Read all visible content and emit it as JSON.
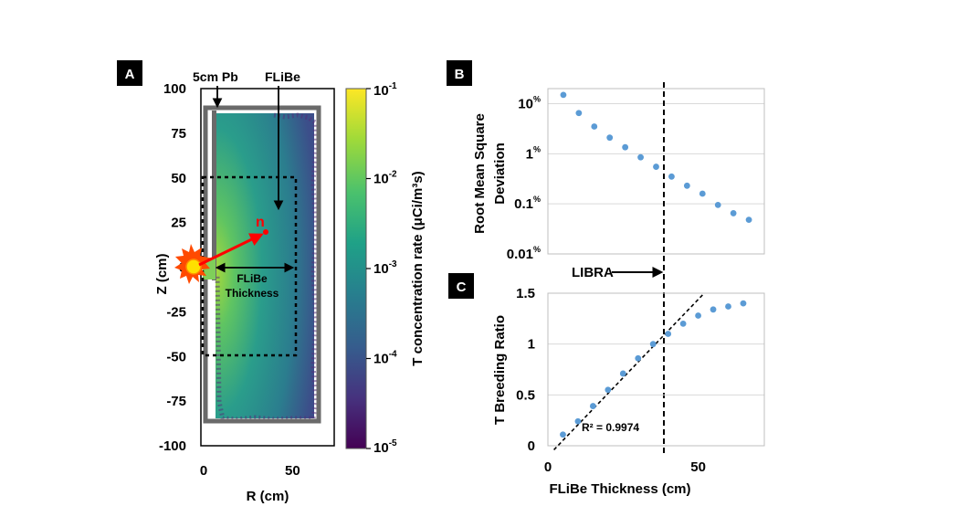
{
  "panels": {
    "a_label": "A",
    "b_label": "B",
    "c_label": "C"
  },
  "colors": {
    "panel_label_bg": "#000000",
    "marker": "#5b9bd5",
    "shield": "#6a6a6a",
    "arrow_red": "#ff0000",
    "source_yellow": "#ffe000"
  },
  "chart_data": [
    {
      "id": "A",
      "type": "heatmap",
      "title": "",
      "xlabel": "R (cm)",
      "ylabel": "Z (cm)",
      "xlim": [
        0,
        75
      ],
      "ylim": [
        -100,
        100
      ],
      "x_ticks": [
        {
          "v": 0,
          "label": "0"
        },
        {
          "v": 50,
          "label": "50"
        }
      ],
      "y_ticks": [
        {
          "v": 100,
          "label": "100"
        },
        {
          "v": 75,
          "label": "75"
        },
        {
          "v": 50,
          "label": "50"
        },
        {
          "v": 25,
          "label": "25"
        },
        {
          "v": 0,
          "label": "0"
        },
        {
          "v": -25,
          "label": "-25"
        },
        {
          "v": -50,
          "label": "-50"
        },
        {
          "v": -75,
          "label": "-75"
        },
        {
          "v": -100,
          "label": "-100"
        }
      ],
      "colorbar": {
        "label": "T concentration rate (μCi/m³s)",
        "scale": "log",
        "range": [
          1e-05,
          0.1
        ],
        "ticks": [
          {
            "v": -1,
            "label": "10",
            "exp": "-1"
          },
          {
            "v": -2,
            "label": "10",
            "exp": "-2"
          },
          {
            "v": -3,
            "label": "10",
            "exp": "-3"
          },
          {
            "v": -4,
            "label": "10",
            "exp": "-4"
          },
          {
            "v": -5,
            "label": "10",
            "exp": "-5"
          }
        ],
        "colormap": [
          "#440154",
          "#46327e",
          "#365c8d",
          "#277f8e",
          "#1fa187",
          "#4ac16d",
          "#a0da39",
          "#fde725"
        ]
      },
      "annotations": {
        "pb_label": "5cm Pb",
        "flibe_label": "FLiBe",
        "thickness_label_1": "FLiBe",
        "thickness_label_2": "Thickness",
        "neutron_label": "n"
      }
    },
    {
      "id": "B",
      "type": "scatter",
      "title": "",
      "xlabel": "",
      "ylabel_1": "Root Mean Square",
      "ylabel_2": "Deviation",
      "yscale": "log",
      "xlim": [
        0,
        70
      ],
      "ylim": [
        0.01,
        20
      ],
      "y_ticks": [
        {
          "v": 10,
          "label": "10",
          "unit": "%"
        },
        {
          "v": 1,
          "label": "1",
          "unit": "%"
        },
        {
          "v": 0.1,
          "label": "0.1",
          "unit": "%"
        },
        {
          "v": 0.01,
          "label": "0.01",
          "unit": "%"
        }
      ],
      "x": [
        5,
        10,
        15,
        20,
        25,
        30,
        35,
        40,
        45,
        50,
        55,
        60,
        65
      ],
      "y": [
        15,
        6.5,
        3.5,
        2.1,
        1.35,
        0.85,
        0.55,
        0.35,
        0.23,
        0.16,
        0.095,
        0.065,
        0.048
      ],
      "grid": true,
      "vline_x": 40,
      "vline_label": "LIBRA"
    },
    {
      "id": "C",
      "type": "scatter",
      "title": "",
      "xlabel": "FLiBe Thickness (cm)",
      "ylabel": "T Breeding Ratio",
      "xlim": [
        0,
        72
      ],
      "ylim": [
        0,
        1.5
      ],
      "x_ticks": [
        {
          "v": 0,
          "label": "0"
        },
        {
          "v": 50,
          "label": "50"
        }
      ],
      "y_ticks": [
        {
          "v": 0,
          "label": "0"
        },
        {
          "v": 0.5,
          "label": "0.5"
        },
        {
          "v": 1,
          "label": "1"
        },
        {
          "v": 1.5,
          "label": "1.5"
        }
      ],
      "x": [
        5,
        10,
        15,
        20,
        25,
        30,
        35,
        40,
        45,
        50,
        55,
        60,
        65
      ],
      "y": [
        0.11,
        0.24,
        0.39,
        0.55,
        0.71,
        0.86,
        1.0,
        1.1,
        1.2,
        1.28,
        1.34,
        1.37,
        1.4
      ],
      "grid": true,
      "vline_x": 40,
      "fit": {
        "label": "R² = 0.9974",
        "x": [
          2,
          52
        ],
        "y": [
          -0.04,
          1.5
        ]
      }
    }
  ]
}
